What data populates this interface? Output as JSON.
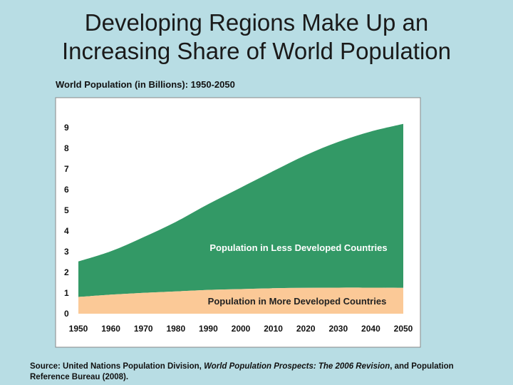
{
  "slide": {
    "title_line1": "Developing Regions Make Up an",
    "title_line2": "Increasing Share of World Population"
  },
  "chart_label": "World Population (in Billions): 1950-2050",
  "source": {
    "prefix": "Source: United Nations Population Division, ",
    "italic": "World Population Prospects: The 2006 Revision",
    "suffix": ", and Population Reference Bureau (2008)."
  },
  "colors": {
    "background": "#b8dde4",
    "less_developed": "#339966",
    "more_developed": "#fbc997",
    "plot_background": "#ffffff"
  },
  "chart_data": {
    "type": "area",
    "stacked": true,
    "title": "World Population (in Billions): 1950-2050",
    "x": [
      1950,
      1960,
      1970,
      1980,
      1990,
      2000,
      2010,
      2020,
      2030,
      2040,
      2050
    ],
    "x_ticks": [
      "1950",
      "1960",
      "1970",
      "1980",
      "1990",
      "2000",
      "2010",
      "2020",
      "2030",
      "2040",
      "2050"
    ],
    "y_ticks": [
      "0",
      "1",
      "2",
      "3",
      "4",
      "5",
      "6",
      "7",
      "8",
      "9"
    ],
    "ylim": [
      0,
      9.5
    ],
    "xlim": [
      1950,
      2050
    ],
    "grid": false,
    "legend": "inline labels",
    "series": [
      {
        "name": "Population in More Developed Countries",
        "values": [
          0.81,
          0.92,
          1.01,
          1.08,
          1.15,
          1.19,
          1.23,
          1.25,
          1.26,
          1.26,
          1.25
        ]
      },
      {
        "name": "Population in Less Developed Countries",
        "values": [
          1.72,
          2.1,
          2.69,
          3.36,
          4.15,
          4.91,
          5.67,
          6.42,
          7.05,
          7.55,
          7.93
        ]
      }
    ]
  }
}
